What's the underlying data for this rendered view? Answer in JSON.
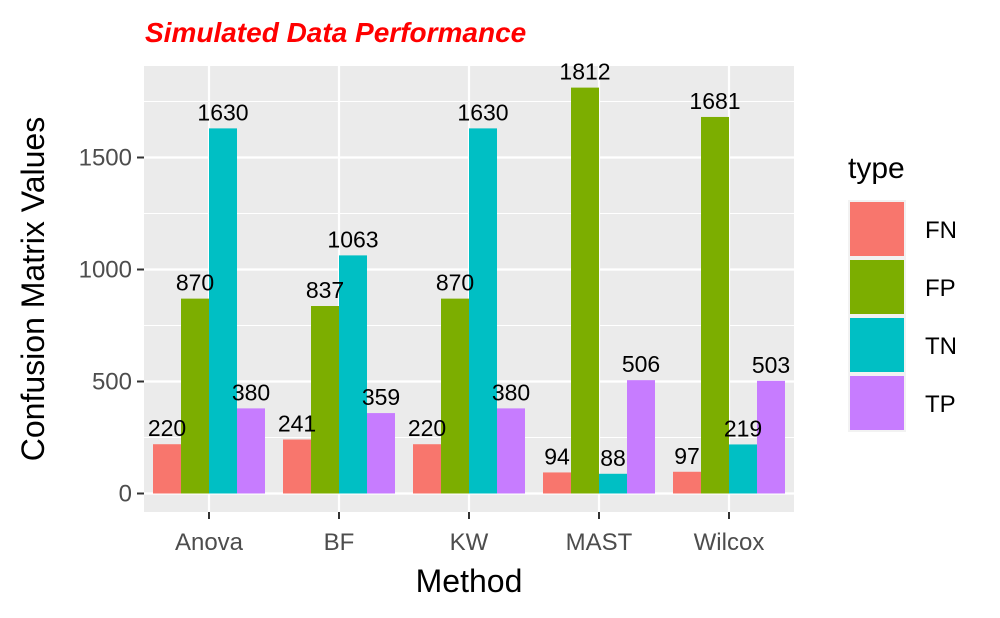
{
  "chart_data": {
    "type": "bar",
    "title": "Simulated Data Performance",
    "xlabel": "Method",
    "ylabel": "Confusion Matrix Values",
    "categories": [
      "Anova",
      "BF",
      "KW",
      "MAST",
      "Wilcox"
    ],
    "series": [
      {
        "name": "FN",
        "color": "#F8766D",
        "values": [
          220,
          241,
          220,
          94,
          97
        ]
      },
      {
        "name": "FP",
        "color": "#7CAE00",
        "values": [
          870,
          837,
          870,
          1812,
          1681
        ]
      },
      {
        "name": "TN",
        "color": "#00BFC4",
        "values": [
          1630,
          1063,
          1630,
          88,
          219
        ]
      },
      {
        "name": "TP",
        "color": "#C77CFF",
        "values": [
          380,
          359,
          380,
          506,
          503
        ]
      }
    ],
    "ylim": [
      -75,
      1900
    ],
    "yticks": [
      0,
      500,
      1000,
      1500
    ],
    "legend": {
      "title": "type",
      "position": "right"
    },
    "grid": true,
    "colors": {
      "panel_background": "#EBEBEB",
      "grid": "#FFFFFF",
      "title": "#FF0000"
    }
  }
}
